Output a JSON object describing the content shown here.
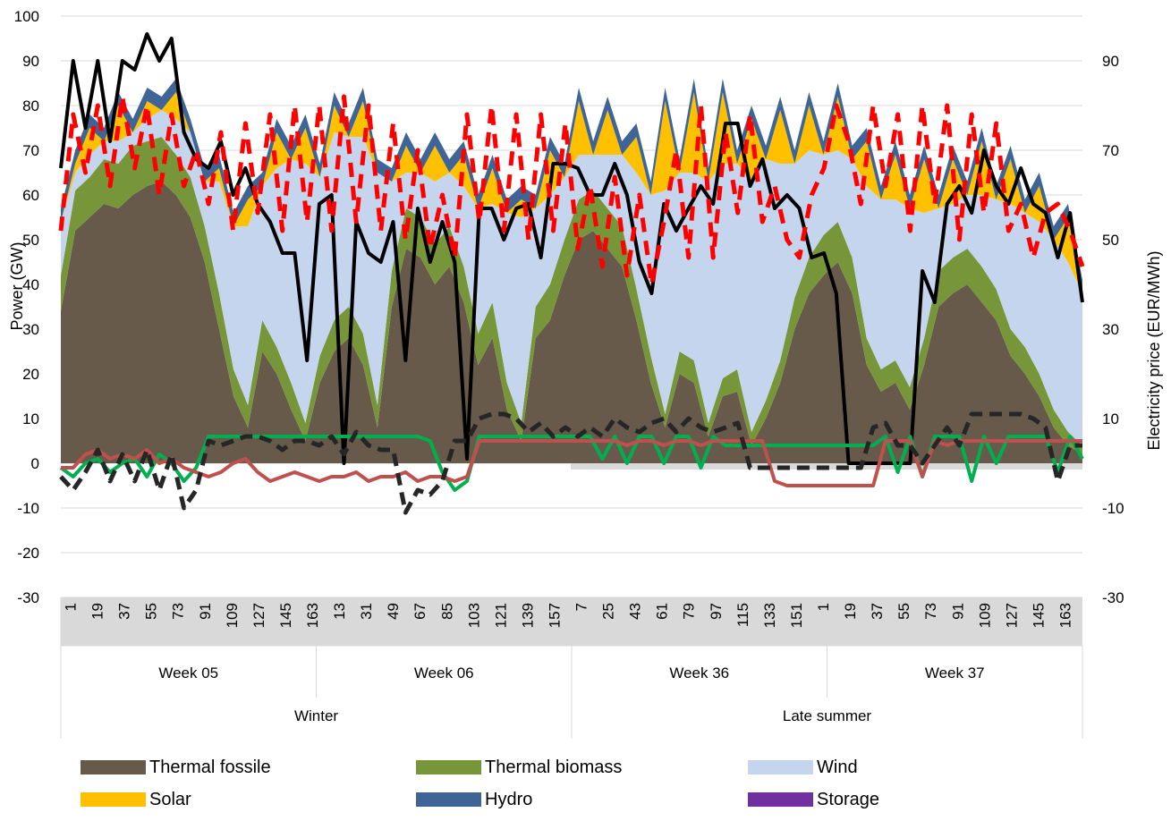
{
  "chart_data": {
    "type": "area",
    "ylabel": "Power (GW)",
    "y2label": "Electricity price (EUR/MWh)",
    "ylim": [
      -30,
      100
    ],
    "y_ticks": [
      -30,
      -20,
      -10,
      0,
      10,
      20,
      30,
      40,
      50,
      60,
      70,
      80,
      90,
      100
    ],
    "y2lim": [
      -30,
      100
    ],
    "y2_ticks": [
      -30,
      -10,
      10,
      30,
      50,
      70,
      90
    ],
    "grid": true,
    "hour_tick_labels": [
      "1",
      "19",
      "37",
      "55",
      "73",
      "91",
      "109",
      "127",
      "145",
      "163",
      "13",
      "31",
      "49",
      "67",
      "85",
      "103",
      "121",
      "139",
      "157",
      "7",
      "25",
      "43",
      "61",
      "79",
      "97",
      "115",
      "133",
      "151",
      "1",
      "19",
      "37",
      "55",
      "73",
      "91",
      "109",
      "127",
      "145",
      "163"
    ],
    "weeks": [
      "Week 05",
      "Week 06",
      "Week 36",
      "Week 37"
    ],
    "seasons": [
      "Winter",
      "Late summer"
    ],
    "legend_position": "bottom",
    "colors": {
      "thermal_fossile": "#675a4b",
      "thermal_biomass": "#77963a",
      "wind": "#c5d5ee",
      "solar": "#ffc000",
      "hydro": "#3e6596",
      "storage": "#7030a0",
      "price_black": "#000000",
      "price_red_dashed": "#ff0000",
      "green_line": "#00b050",
      "red_line": "#c0504d",
      "dark_dashed": "#262626",
      "axis_band": "#d9d9d9"
    },
    "series": [
      {
        "name": "Thermal fossile",
        "kind": "stacked-area",
        "key": "thermal_fossile",
        "values": [
          34,
          52,
          55,
          58,
          57,
          60,
          62,
          63,
          60,
          55,
          45,
          30,
          15,
          8,
          25,
          20,
          12,
          5,
          18,
          25,
          28,
          22,
          8,
          35,
          48,
          46,
          40,
          44,
          36,
          22,
          28,
          12,
          5,
          28,
          32,
          42,
          50,
          52,
          48,
          44,
          32,
          18,
          8,
          20,
          18,
          6,
          15,
          16,
          4,
          10,
          18,
          30,
          38,
          42,
          45,
          38,
          22,
          16,
          18,
          12,
          22,
          35,
          38,
          40,
          36,
          32,
          24,
          20,
          15,
          8,
          4,
          2
        ]
      },
      {
        "name": "Thermal biomass",
        "kind": "stacked-area",
        "key": "thermal_biomass",
        "values": [
          8,
          9,
          9,
          10,
          10,
          11,
          10,
          10,
          9,
          9,
          8,
          8,
          6,
          5,
          7,
          6,
          6,
          4,
          6,
          7,
          7,
          7,
          5,
          8,
          9,
          9,
          9,
          9,
          8,
          7,
          8,
          6,
          4,
          7,
          8,
          8,
          9,
          9,
          9,
          9,
          7,
          6,
          3,
          5,
          5,
          3,
          4,
          5,
          3,
          4,
          5,
          7,
          8,
          9,
          9,
          8,
          6,
          5,
          5,
          5,
          6,
          8,
          8,
          8,
          8,
          7,
          6,
          6,
          5,
          4,
          3,
          2
        ]
      },
      {
        "name": "Wind",
        "kind": "stacked-area",
        "key": "wind",
        "values": [
          12,
          4,
          5,
          4,
          5,
          3,
          5,
          6,
          8,
          10,
          10,
          25,
          32,
          40,
          30,
          40,
          50,
          58,
          40,
          42,
          38,
          44,
          52,
          20,
          8,
          10,
          14,
          12,
          18,
          28,
          22,
          38,
          46,
          22,
          20,
          14,
          10,
          8,
          12,
          16,
          26,
          36,
          50,
          40,
          42,
          54,
          48,
          46,
          56,
          54,
          44,
          30,
          24,
          18,
          16,
          22,
          34,
          38,
          36,
          40,
          28,
          14,
          12,
          12,
          16,
          20,
          28,
          30,
          34,
          38,
          38,
          34
        ]
      },
      {
        "name": "Solar",
        "kind": "stacked-area",
        "key": "solar",
        "values": [
          0,
          2,
          6,
          0,
          8,
          0,
          4,
          0,
          6,
          0,
          0,
          3,
          0,
          6,
          0,
          8,
          0,
          8,
          0,
          6,
          0,
          8,
          0,
          0,
          6,
          0,
          8,
          0,
          7,
          0,
          8,
          0,
          4,
          0,
          10,
          0,
          12,
          0,
          10,
          0,
          8,
          0,
          20,
          0,
          18,
          0,
          16,
          0,
          14,
          0,
          12,
          0,
          10,
          0,
          12,
          0,
          10,
          0,
          10,
          0,
          12,
          0,
          10,
          0,
          12,
          0,
          10,
          0,
          8,
          0,
          10,
          0
        ]
      },
      {
        "name": "Hydro",
        "kind": "stacked-area",
        "key": "hydro",
        "values": [
          3,
          3,
          3,
          3,
          3,
          3,
          3,
          3,
          3,
          3,
          3,
          3,
          3,
          3,
          3,
          3,
          3,
          3,
          3,
          3,
          3,
          3,
          3,
          3,
          3,
          3,
          3,
          3,
          3,
          3,
          3,
          3,
          3,
          3,
          3,
          3,
          3,
          3,
          3,
          3,
          3,
          3,
          3,
          3,
          3,
          3,
          3,
          3,
          3,
          3,
          3,
          3,
          3,
          3,
          3,
          3,
          3,
          3,
          3,
          3,
          3,
          3,
          3,
          3,
          3,
          3,
          3,
          3,
          3,
          3,
          3,
          3
        ]
      },
      {
        "name": "Storage",
        "kind": "stacked-area",
        "key": "storage",
        "values": [
          0,
          0,
          0,
          0,
          0,
          0,
          0,
          0,
          0,
          0,
          0,
          0,
          0,
          0,
          0,
          0,
          0,
          0,
          0,
          0,
          0,
          0,
          0,
          0,
          0,
          0,
          0,
          0,
          0,
          0,
          0,
          0,
          0,
          0,
          0,
          0,
          0,
          0,
          0,
          0,
          0,
          0,
          0,
          0,
          0,
          0,
          0,
          0,
          0,
          0,
          0,
          0,
          0,
          0,
          0,
          0,
          0,
          0,
          0,
          0,
          0,
          0,
          0,
          0,
          0,
          0,
          0,
          0,
          0,
          0,
          0,
          0
        ]
      },
      {
        "kind": "line",
        "axis": "right",
        "key": "price_black",
        "width": 4,
        "dash": "",
        "values": [
          66,
          90,
          75,
          90,
          72,
          90,
          88,
          96,
          90,
          95,
          74,
          68,
          66,
          72,
          60,
          66,
          58,
          54,
          47,
          47,
          23,
          58,
          60,
          0,
          54,
          47,
          45,
          54,
          23,
          57,
          45,
          54,
          45,
          1,
          57,
          57,
          50,
          57,
          58,
          46,
          67,
          67,
          66,
          60,
          60,
          67,
          60,
          45,
          38,
          58,
          52,
          57,
          62,
          58,
          76,
          76,
          62,
          68,
          57,
          60,
          57,
          46,
          47,
          38,
          0,
          0,
          0,
          0,
          0,
          0,
          43,
          36,
          58,
          62,
          56,
          70,
          62,
          58,
          66,
          58,
          56,
          46,
          56,
          36
        ]
      },
      {
        "kind": "line",
        "axis": "right",
        "key": "price_red_dashed",
        "width": 5,
        "dash": "16,10",
        "values": [
          52,
          78,
          65,
          80,
          62,
          82,
          66,
          80,
          60,
          78,
          62,
          70,
          58,
          74,
          52,
          76,
          56,
          78,
          52,
          80,
          54,
          80,
          52,
          82,
          54,
          80,
          52,
          76,
          50,
          70,
          48,
          60,
          46,
          78,
          54,
          80,
          52,
          78,
          50,
          78,
          52,
          76,
          48,
          62,
          44,
          64,
          42,
          60,
          40,
          54,
          70,
          46,
          80,
          46,
          74,
          56,
          78,
          54,
          62,
          50,
          46,
          60,
          66,
          80,
          72,
          58,
          80,
          62,
          78,
          52,
          80,
          58,
          80,
          50,
          78,
          56,
          76,
          52,
          58,
          46,
          56,
          58,
          52,
          44
        ]
      },
      {
        "kind": "line",
        "axis": "left",
        "key": "green_line",
        "width": 4,
        "dash": "",
        "values": [
          -1,
          -3,
          0,
          1,
          -2,
          0,
          1,
          -3,
          2,
          0,
          -4,
          -1,
          6,
          6,
          6,
          6,
          6,
          6,
          6,
          6,
          6,
          6,
          6,
          6,
          6,
          6,
          6,
          6,
          6,
          6,
          5,
          -2,
          -6,
          -4,
          6,
          6,
          6,
          6,
          6,
          6,
          6,
          6,
          6,
          6,
          1,
          6,
          0,
          6,
          6,
          0,
          6,
          6,
          -1,
          6,
          4,
          4,
          4,
          4,
          4,
          4,
          4,
          4,
          4,
          4,
          4,
          4,
          4,
          6,
          -2,
          6,
          -3,
          6,
          6,
          6,
          -4,
          6,
          0,
          6,
          6,
          6,
          6,
          -2,
          6,
          1
        ]
      },
      {
        "kind": "line",
        "axis": "left",
        "key": "red_line",
        "width": 4,
        "dash": "",
        "values": [
          -1,
          -1,
          2,
          3,
          1,
          2,
          1,
          3,
          0,
          1,
          -1,
          -2,
          -3,
          -2,
          0,
          1,
          -2,
          -4,
          -3,
          -2,
          -3,
          -4,
          -3,
          -3,
          -2,
          -4,
          -3,
          -3,
          -2,
          -4,
          -3,
          -3,
          -4,
          -3,
          5,
          5,
          5,
          5,
          5,
          5,
          5,
          5,
          5,
          5,
          5,
          5,
          4,
          5,
          5,
          4,
          5,
          5,
          4,
          5,
          5,
          5,
          5,
          5,
          -4,
          -5,
          -5,
          -5,
          -5,
          -5,
          -5,
          -5,
          -5,
          5,
          5,
          5,
          -3,
          5,
          4,
          5,
          5,
          5,
          5,
          5,
          5,
          5,
          5,
          5,
          5,
          5
        ]
      },
      {
        "kind": "line",
        "axis": "left",
        "key": "dark_dashed",
        "width": 5,
        "dash": "14,8",
        "values": [
          -3,
          -6,
          -2,
          3,
          -4,
          2,
          -4,
          3,
          -6,
          2,
          -10,
          -6,
          5,
          4,
          5,
          6,
          6,
          5,
          3,
          5,
          5,
          4,
          6,
          2,
          7,
          4,
          3,
          3,
          -11,
          -6,
          -7,
          -4,
          5,
          5,
          10,
          11,
          11,
          10,
          7,
          9,
          6,
          8,
          6,
          8,
          6,
          10,
          8,
          7,
          9,
          10,
          7,
          10,
          8,
          7,
          8,
          9,
          -1,
          -1,
          -1,
          -1,
          -1,
          -1,
          -1,
          -1,
          -1,
          -1,
          8,
          9,
          4,
          4,
          0,
          4,
          8,
          4,
          11,
          11,
          11,
          11,
          11,
          10,
          8,
          -4,
          4,
          4
        ]
      }
    ]
  },
  "legend": [
    {
      "label": "Thermal fossile",
      "color": "#675a4b"
    },
    {
      "label": "Thermal biomass",
      "color": "#77963a"
    },
    {
      "label": "Wind",
      "color": "#c5d5ee"
    },
    {
      "label": "Solar",
      "color": "#ffc000"
    },
    {
      "label": "Hydro",
      "color": "#3e6596"
    },
    {
      "label": "Storage",
      "color": "#7030a0"
    }
  ]
}
